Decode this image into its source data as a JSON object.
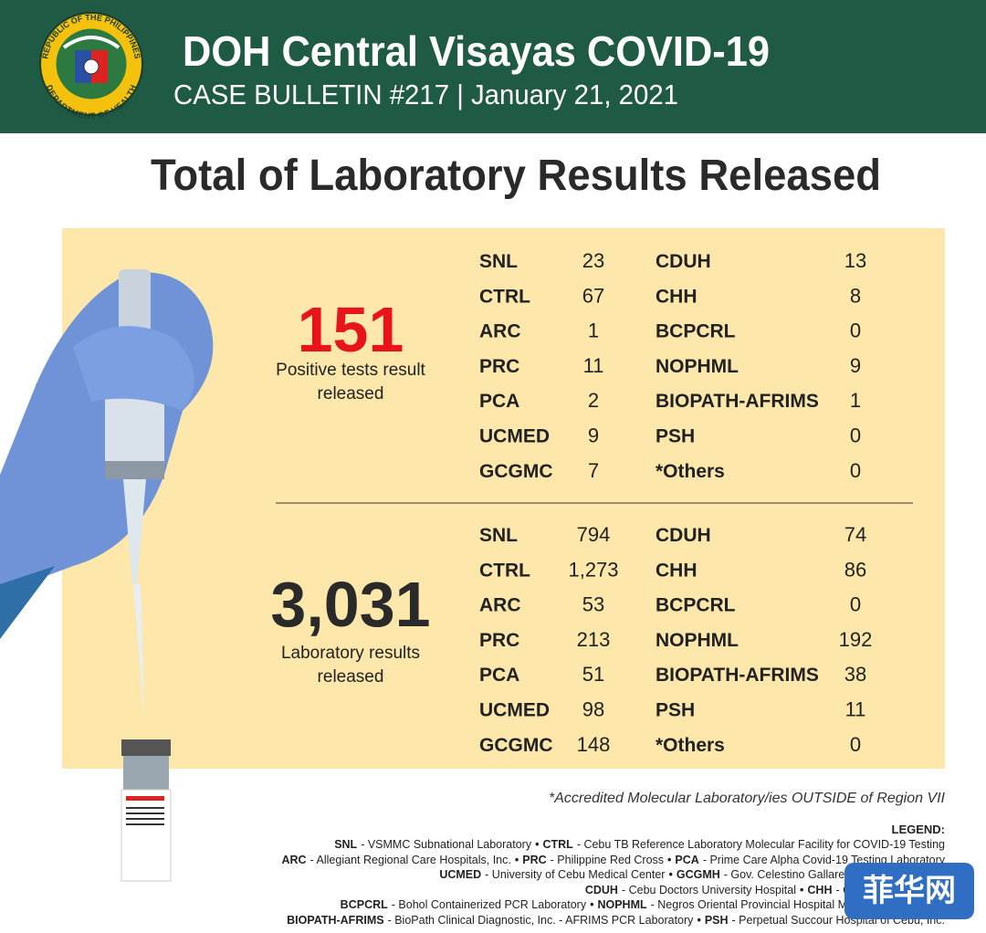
{
  "header": {
    "title": "DOH Central Visayas COVID-19",
    "subtitle": "CASE BULLETIN #217 | January 21, 2021",
    "logo_top": "REPUBLIC OF THE PHILIPPINES",
    "logo_bottom": "DEPARTMENT OF HEALTH"
  },
  "heading": "Total of Laboratory Results Released",
  "sections": [
    {
      "total": "151",
      "caption": [
        "Positive tests result",
        "released"
      ],
      "rows": [
        [
          "SNL",
          "23",
          "CDUH",
          "13"
        ],
        [
          "CTRL",
          "67",
          "CHH",
          "8"
        ],
        [
          "ARC",
          "1",
          "BCPCRL",
          "0"
        ],
        [
          "PRC",
          "11",
          "NOPHML",
          "9"
        ],
        [
          "PCA",
          "2",
          "BIOPATH-AFRIMS",
          "1"
        ],
        [
          "UCMED",
          "9",
          "PSH",
          "0"
        ],
        [
          "GCGMC",
          "7",
          "*Others",
          "0"
        ]
      ]
    },
    {
      "total": "3,031",
      "caption": [
        "Laboratory results",
        "released"
      ],
      "rows": [
        [
          "SNL",
          "794",
          "CDUH",
          "74"
        ],
        [
          "CTRL",
          "1,273",
          "CHH",
          "86"
        ],
        [
          "ARC",
          "53",
          "BCPCRL",
          "0"
        ],
        [
          "PRC",
          "213",
          "NOPHML",
          "192"
        ],
        [
          "PCA",
          "51",
          "BIOPATH-AFRIMS",
          "38"
        ],
        [
          "UCMED",
          "98",
          "PSH",
          "11"
        ],
        [
          "GCGMC",
          "148",
          "*Others",
          "0"
        ]
      ]
    }
  ],
  "footnote": "*Accredited Molecular Laboratory/ies OUTSIDE of Region VII",
  "legend": {
    "title": "LEGEND:",
    "separator": "•",
    "lines": [
      [
        {
          "abbr": "SNL",
          "desc": "- VSMMC Subnational Laboratory"
        },
        {
          "abbr": "CTRL",
          "desc": "- Cebu TB Reference Laboratory Molecular Facility for COVID-19 Testing"
        }
      ],
      [
        {
          "abbr": "ARC",
          "desc": "- Allegiant Regional Care Hospitals, Inc."
        },
        {
          "abbr": "PRC",
          "desc": "- Philippine Red Cross"
        },
        {
          "abbr": "PCA",
          "desc": "- Prime Care Alpha Covid-19 Testing Laboratory"
        }
      ],
      [
        {
          "abbr": "UCMED",
          "desc": "- University of Cebu Medical Center"
        },
        {
          "abbr": "GCGMH",
          "desc": "- Gov. Celestino Gallares Memorial Hospital"
        }
      ],
      [
        {
          "abbr": "CDUH",
          "desc": "- Cebu Doctors University Hospital"
        },
        {
          "abbr": "CHH",
          "desc": "- Chong Hua Hospital"
        }
      ],
      [
        {
          "abbr": "BCPCRL",
          "desc": "- Bohol Containerized PCR Laboratory"
        },
        {
          "abbr": "NOPHML",
          "desc": "- Negros Oriental Provincial Hospital Molecular Laboratory"
        }
      ],
      [
        {
          "abbr": "BIOPATH-AFRIMS",
          "desc": "- BioPath Clinical Diagnostic, Inc. - AFRIMS PCR Laboratory"
        },
        {
          "abbr": "PSH",
          "desc": "- Perpetual Succour Hospital of Cebu, Inc."
        }
      ]
    ]
  },
  "watermark": "菲华网"
}
